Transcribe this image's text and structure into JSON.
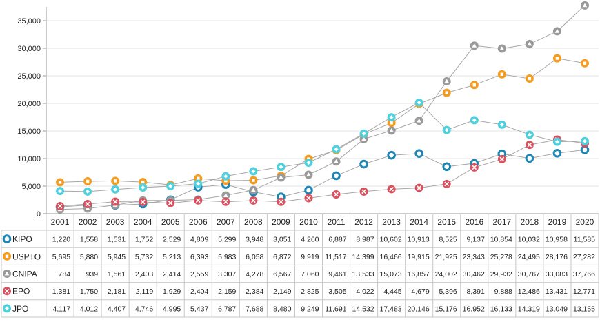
{
  "chart_data": {
    "type": "line",
    "title": "",
    "xlabel": "",
    "ylabel": "",
    "ylim": [
      0,
      37500
    ],
    "yticks": [
      0,
      5000,
      10000,
      15000,
      20000,
      25000,
      30000,
      35000
    ],
    "ytick_labels": [
      "0",
      "5,000",
      "10,000",
      "15,000",
      "20,000",
      "25,000",
      "30,000",
      "35,000"
    ],
    "categories": [
      "2001",
      "2002",
      "2003",
      "2004",
      "2005",
      "2006",
      "2007",
      "2008",
      "2009",
      "2010",
      "2011",
      "2012",
      "2013",
      "2014",
      "2015",
      "2016",
      "2017",
      "2018",
      "2019",
      "2020"
    ],
    "series": [
      {
        "name": "KIPO",
        "color": "#1e86b4",
        "marker": "ring",
        "values": [
          1220,
          1558,
          1531,
          1752,
          2529,
          4809,
          5299,
          3948,
          3051,
          4260,
          6887,
          8987,
          10602,
          10913,
          8525,
          9137,
          10854,
          10032,
          10958,
          11585
        ],
        "labels": [
          "1,220",
          "1,558",
          "1,531",
          "1,752",
          "2,529",
          "4,809",
          "5,299",
          "3,948",
          "3,051",
          "4,260",
          "6,887",
          "8,987",
          "10,602",
          "10,913",
          "8,525",
          "9,137",
          "10,854",
          "10,032",
          "10,958",
          "11,585"
        ]
      },
      {
        "name": "USPTO",
        "color": "#f39c1f",
        "marker": "square-dot",
        "values": [
          5695,
          5880,
          5945,
          5732,
          5213,
          6393,
          5983,
          6058,
          6872,
          9919,
          11517,
          14399,
          16466,
          19915,
          21925,
          23343,
          25278,
          24495,
          28176,
          27282
        ],
        "labels": [
          "5,695",
          "5,880",
          "5,945",
          "5,732",
          "5,213",
          "6,393",
          "5,983",
          "6,058",
          "6,872",
          "9,919",
          "11,517",
          "14,399",
          "16,466",
          "19,915",
          "21,925",
          "23,343",
          "25,278",
          "24,495",
          "28,176",
          "27,282"
        ]
      },
      {
        "name": "CNIPA",
        "color": "#9a9a9a",
        "marker": "triangle",
        "values": [
          784,
          939,
          1561,
          2403,
          2414,
          2559,
          3307,
          4278,
          6567,
          7060,
          9461,
          13533,
          15073,
          16857,
          24002,
          30462,
          29932,
          30767,
          33083,
          37766
        ],
        "labels": [
          "784",
          "939",
          "1,561",
          "2,403",
          "2,414",
          "2,559",
          "3,307",
          "4,278",
          "6,567",
          "7,060",
          "9,461",
          "13,533",
          "15,073",
          "16,857",
          "24,002",
          "30,462",
          "29,932",
          "30,767",
          "33,083",
          "37,766"
        ]
      },
      {
        "name": "EPO",
        "color": "#d9505e",
        "marker": "cross",
        "values": [
          1381,
          1750,
          2181,
          2119,
          1929,
          2404,
          2159,
          2384,
          2149,
          2825,
          3505,
          4022,
          4445,
          4679,
          5396,
          8391,
          9888,
          12486,
          13431,
          12771
        ],
        "labels": [
          "1,381",
          "1,750",
          "2,181",
          "2,119",
          "1,929",
          "2,404",
          "2,159",
          "2,384",
          "2,149",
          "2,825",
          "3,505",
          "4,022",
          "4,445",
          "4,679",
          "5,396",
          "8,391",
          "9,888",
          "12,486",
          "13,431",
          "12,771"
        ]
      },
      {
        "name": "JPO",
        "color": "#4fd0dc",
        "marker": "diamond-dot",
        "values": [
          4117,
          4012,
          4407,
          4746,
          4995,
          5437,
          6787,
          7688,
          8480,
          9249,
          11691,
          14532,
          17483,
          20146,
          15176,
          16952,
          16133,
          14319,
          13049,
          13155
        ],
        "labels": [
          "4,117",
          "4,012",
          "4,407",
          "4,746",
          "4,995",
          "5,437",
          "6,787",
          "7,688",
          "8,480",
          "9,249",
          "11,691",
          "14,532",
          "17,483",
          "20,146",
          "15,176",
          "16,952",
          "16,133",
          "14,319",
          "13,049",
          "13,155"
        ]
      }
    ]
  }
}
